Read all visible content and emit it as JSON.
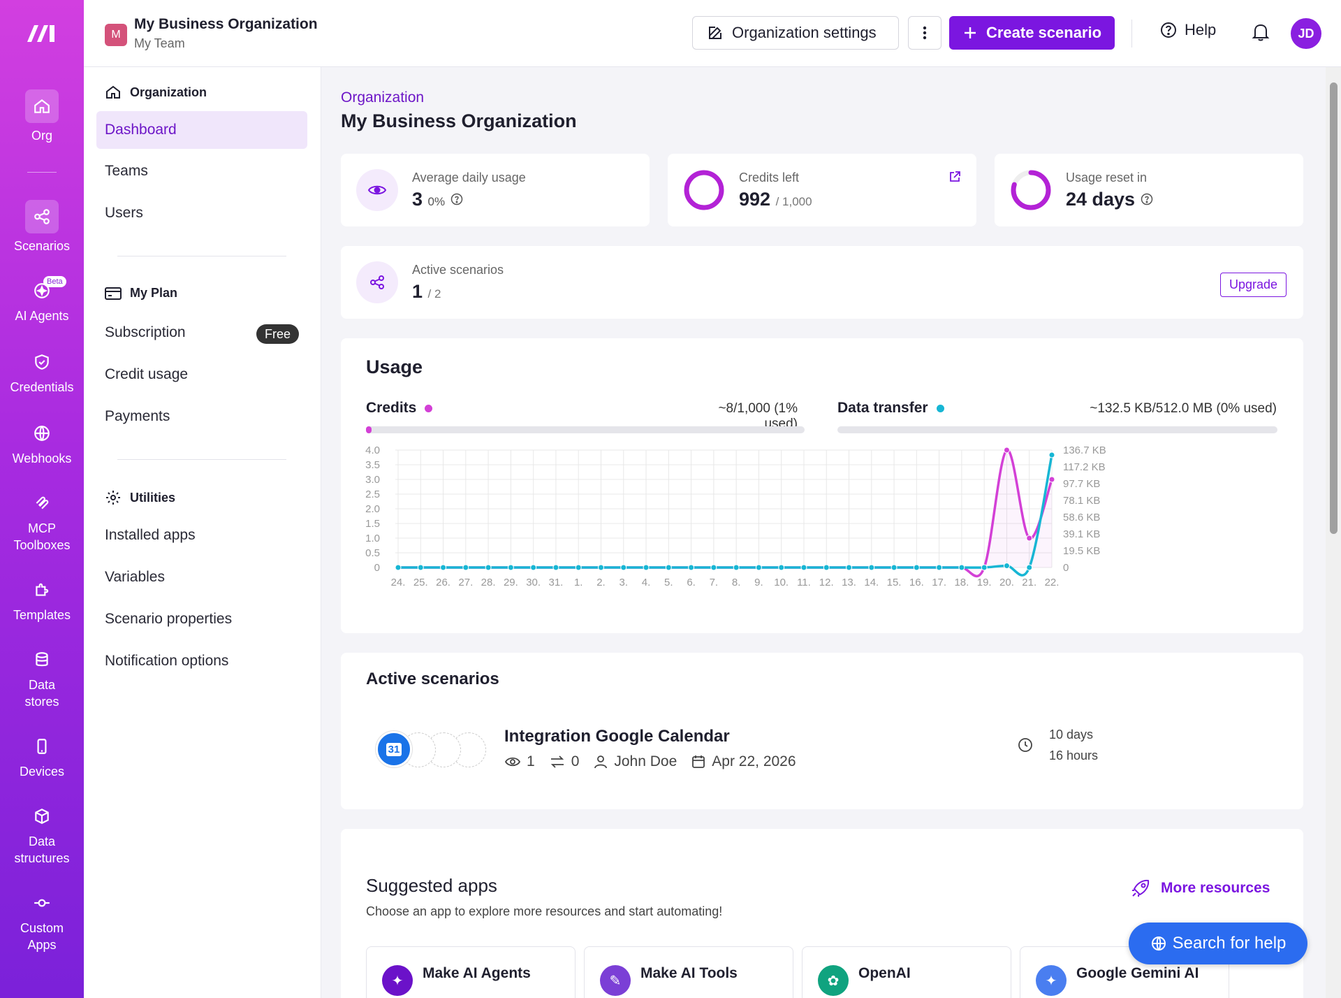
{
  "leftnav": {
    "items": [
      {
        "label": "Org",
        "icon": "home-icon"
      },
      {
        "label": "Scenarios",
        "icon": "share-nodes-icon"
      },
      {
        "label": "AI Agents",
        "icon": "ai-agent-icon",
        "badge": "Beta"
      },
      {
        "label": "Credentials",
        "icon": "shield-icon"
      },
      {
        "label": "Webhooks",
        "icon": "globe-icon"
      },
      {
        "label": "MCP\nToolboxes",
        "label_l1": "MCP",
        "label_l2": "Toolboxes",
        "icon": "mcp-icon"
      },
      {
        "label": "Templates",
        "icon": "puzzle-icon"
      },
      {
        "label": "Data stores",
        "label_l1": "Data",
        "label_l2": "stores",
        "icon": "database-icon"
      },
      {
        "label": "Devices",
        "icon": "device-icon"
      },
      {
        "label": "Data structures",
        "label_l1": "Data",
        "label_l2": "structures",
        "icon": "cube-icon"
      },
      {
        "label": "Custom Apps",
        "label_l1": "Custom",
        "label_l2": "Apps",
        "icon": "commit-icon"
      }
    ]
  },
  "topbar": {
    "org_initial": "M",
    "org_name": "My Business Organization",
    "team_name": "My Team",
    "org_settings_label": "Organization settings",
    "create_label": "Create scenario",
    "help_label": "Help",
    "avatar_initials": "JD"
  },
  "subnav": {
    "organization_head": "Organization",
    "organization_items": [
      "Dashboard",
      "Teams",
      "Users"
    ],
    "plan_head": "My Plan",
    "plan_items": [
      "Subscription",
      "Credit usage",
      "Payments"
    ],
    "plan_badge": "Free",
    "utilities_head": "Utilities",
    "utilities_items": [
      "Installed apps",
      "Variables",
      "Scenario properties",
      "Notification options"
    ]
  },
  "main": {
    "breadcrumb": "Organization",
    "title": "My Business Organization",
    "stats": {
      "avg_label": "Average daily usage",
      "avg_value": "3",
      "avg_percent": "0%",
      "credits_label": "Credits left",
      "credits_value": "992",
      "credits_total": "/ 1,000",
      "credits_fraction": 0.992,
      "reset_label": "Usage reset in",
      "reset_value": "24 days",
      "reset_fraction": 0.8,
      "active_label": "Active scenarios",
      "active_value": "1",
      "active_total": "/ 2",
      "upgrade_label": "Upgrade"
    },
    "usage": {
      "title": "Usage",
      "credits_label": "Credits",
      "credits_value": "~8/1,000 (1% used)",
      "credits_fraction": 0.01,
      "credits_color": "#d340d6",
      "transfer_label": "Data transfer",
      "transfer_value": "~132.5 KB/512.0 MB (0% used)",
      "transfer_fraction": 0.0,
      "transfer_color": "#17b6d4"
    },
    "active_scenarios": {
      "title": "Active scenarios",
      "items": [
        {
          "name": "Integration Google Calendar",
          "ops": "1",
          "transfers": "0",
          "owner": "John Doe",
          "date": "Apr 22, 2026",
          "time_l1": "10 days",
          "time_l2": "16 hours",
          "app_icon": "google-calendar-icon",
          "app_icon_text": "31"
        }
      ]
    },
    "suggested": {
      "title": "Suggested apps",
      "subtitle": "Choose an app to explore more resources and start automating!",
      "more_label": "More resources",
      "apps": [
        {
          "name": "Make AI Agents",
          "icon": "make-ai-agents-icon",
          "color": "#6b12c9"
        },
        {
          "name": "Make AI Tools",
          "icon": "make-ai-tools-icon",
          "color": "#7b3fd6"
        },
        {
          "name": "OpenAI",
          "icon": "openai-icon",
          "color": "#10a37f"
        },
        {
          "name": "Google Gemini AI",
          "icon": "gemini-icon",
          "color": "#4a7ef0"
        }
      ]
    },
    "search_help_label": "Search for help"
  },
  "chart_data": {
    "type": "line",
    "x": [
      "24.",
      "25.",
      "26.",
      "27.",
      "28.",
      "29.",
      "30.",
      "31.",
      "1.",
      "2.",
      "3.",
      "4.",
      "5.",
      "6.",
      "7.",
      "8.",
      "9.",
      "10.",
      "11.",
      "12.",
      "13.",
      "14.",
      "15.",
      "16.",
      "17.",
      "18.",
      "19.",
      "20.",
      "21.",
      "22."
    ],
    "y_left_ticks": [
      "4.0",
      "3.5",
      "3.0",
      "2.5",
      "2.0",
      "1.5",
      "1.0",
      "0.5",
      "0"
    ],
    "y_right_ticks": [
      "136.7 KB",
      "117.2 KB",
      "97.7 KB",
      "78.1 KB",
      "58.6 KB",
      "39.1 KB",
      "19.5 KB",
      "0"
    ],
    "ylim_left": [
      0,
      4
    ],
    "ylim_right": [
      0,
      136.7
    ],
    "grid": true,
    "series": [
      {
        "name": "Credits",
        "axis": "left",
        "color": "#d340d6",
        "values": [
          0,
          0,
          0,
          0,
          0,
          0,
          0,
          0,
          0,
          0,
          0,
          0,
          0,
          0,
          0,
          0,
          0,
          0,
          0,
          0,
          0,
          0,
          0,
          0,
          0,
          0,
          0,
          4,
          1,
          3
        ]
      },
      {
        "name": "Data transfer",
        "axis": "right",
        "color": "#17b6d4",
        "values": [
          0,
          0,
          0,
          0,
          0,
          0,
          0,
          0,
          0,
          0,
          0,
          0,
          0,
          0,
          0,
          0,
          0,
          0,
          0,
          0,
          0,
          0,
          0,
          0,
          0,
          0,
          0,
          2,
          0,
          131
        ]
      }
    ]
  }
}
